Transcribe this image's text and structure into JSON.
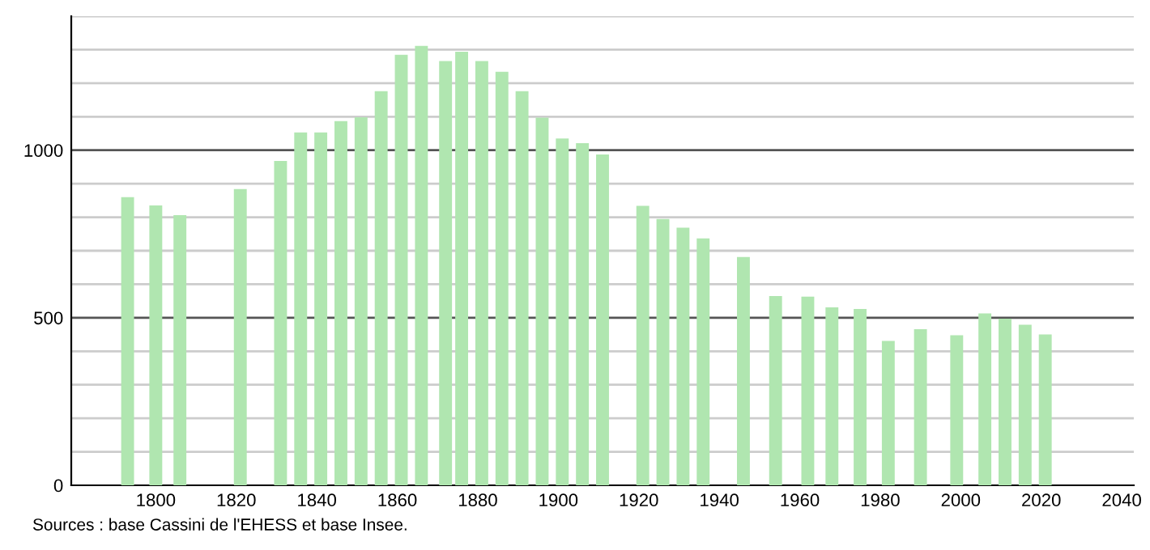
{
  "chart_data": {
    "type": "bar",
    "x": [
      1793,
      1800,
      1806,
      1821,
      1831,
      1836,
      1841,
      1846,
      1851,
      1856,
      1861,
      1866,
      1872,
      1876,
      1881,
      1886,
      1891,
      1896,
      1901,
      1906,
      1911,
      1921,
      1926,
      1931,
      1936,
      1946,
      1954,
      1962,
      1968,
      1975,
      1982,
      1990,
      1999,
      2006,
      2011,
      2016,
      2021
    ],
    "values": [
      860,
      835,
      806,
      884,
      968,
      1053,
      1053,
      1087,
      1098,
      1176,
      1285,
      1311,
      1266,
      1294,
      1266,
      1234,
      1176,
      1097,
      1035,
      1021,
      987,
      834,
      795,
      769,
      737,
      681,
      565,
      563,
      531,
      526,
      431,
      466,
      448,
      513,
      497,
      479,
      450
    ],
    "color": "#b0e6b0",
    "xlim": [
      1779,
      2043
    ],
    "xticks": [
      1800,
      1820,
      1840,
      1860,
      1880,
      1900,
      1920,
      1940,
      1960,
      1980,
      2000,
      2020,
      2040
    ],
    "ylim": [
      0,
      1400
    ],
    "yticks": [
      0,
      {
        "value": 100,
        "label": null
      },
      {
        "value": 200,
        "label": null
      },
      {
        "value": 300,
        "label": null
      },
      {
        "value": 400,
        "label": null
      },
      500,
      {
        "value": 600,
        "label": null
      },
      {
        "value": 700,
        "label": null
      },
      {
        "value": 800,
        "label": null
      },
      {
        "value": 900,
        "label": null
      },
      1000,
      {
        "value": 1100,
        "label": null
      },
      {
        "value": 1200,
        "label": null
      },
      {
        "value": 1300,
        "label": null
      },
      {
        "value": 1400,
        "label": null
      }
    ],
    "grid": "y",
    "annotations": [
      "Sources : base Cassini de l'EHESS et base Insee."
    ]
  }
}
